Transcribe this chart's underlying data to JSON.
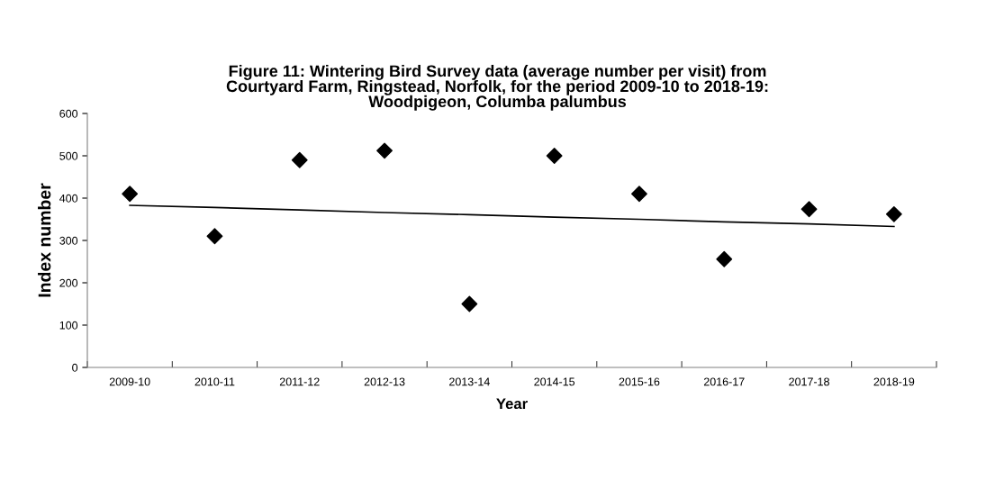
{
  "chart_data": {
    "type": "scatter",
    "title": "Figure 11: Wintering Bird Survey data (average number per visit) from\nCourtyard Farm, Ringstead, Norfolk, for the period 2009-10 to 2018-19:\nWoodpigeon, Columba palumbus",
    "xlabel": "Year",
    "ylabel": "Index number",
    "categories": [
      "2009-10",
      "2010-11",
      "2011-12",
      "2012-13",
      "2013-14",
      "2014-15",
      "2015-16",
      "2016-17",
      "2017-18",
      "2018-19"
    ],
    "series": [
      {
        "color": "#000000",
        "marker": "diamond",
        "values": [
          410,
          310,
          490,
          512,
          150,
          500,
          410,
          256,
          374,
          362
        ]
      },
      {
        "type": "line",
        "color": "#000000",
        "values": [
          383,
          378,
          372,
          366,
          361,
          355,
          350,
          344,
          339,
          333
        ]
      }
    ],
    "ylim": [
      0,
      600
    ],
    "yticks": [
      0,
      100,
      200,
      300,
      400,
      500,
      600
    ],
    "grid": false,
    "legend": false
  }
}
